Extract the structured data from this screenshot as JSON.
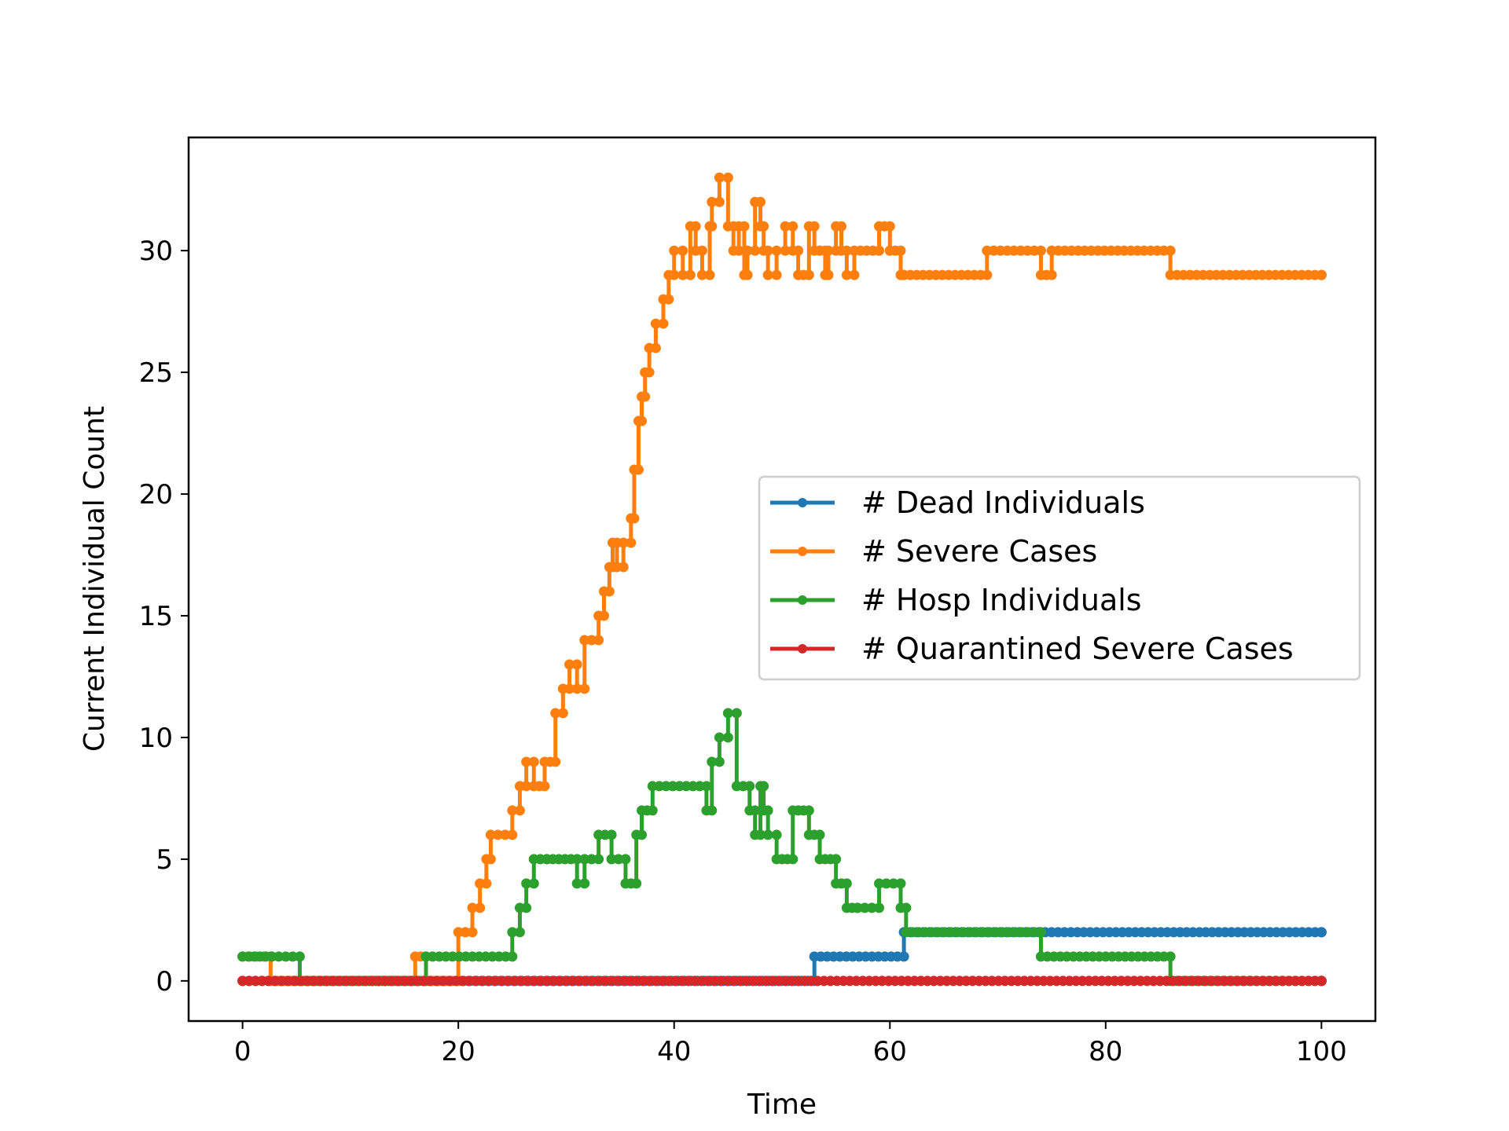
{
  "chart_data": {
    "type": "line",
    "title": "",
    "xlabel": "Time",
    "ylabel": "Current Individual Count",
    "xlim": [
      -5,
      105
    ],
    "ylim": [
      -1.65,
      34.65
    ],
    "xticks": [
      0,
      20,
      40,
      60,
      80,
      100
    ],
    "yticks": [
      0,
      5,
      10,
      15,
      20,
      25,
      30
    ],
    "grid": false,
    "legend_position": "center-right",
    "step": "post",
    "marker": "circle",
    "series": [
      {
        "name": "# Dead Individuals",
        "color": "#1f77b4",
        "x": [
          0,
          53,
          61.3,
          100
        ],
        "y": [
          0,
          1,
          2,
          2
        ]
      },
      {
        "name": "# Severe Cases",
        "color": "#ff7f0e",
        "x": [
          0,
          2.6,
          16,
          17,
          20,
          21.3,
          22,
          22.6,
          23,
          25,
          25.7,
          26.3,
          27,
          28,
          29,
          29.7,
          30.3,
          31,
          31.7,
          33,
          33.5,
          34,
          34.3,
          34.7,
          35.3,
          36,
          36.3,
          36.7,
          37,
          37.3,
          37.7,
          38.3,
          39,
          39.5,
          40,
          40.8,
          41.5,
          42,
          42.6,
          43.3,
          43.5,
          44.2,
          45,
          45.5,
          46,
          46.5,
          46.8,
          47.5,
          48,
          48.3,
          48.7,
          49.5,
          50.3,
          51,
          51.5,
          52.5,
          53,
          53.5,
          54,
          54.3,
          55,
          55.5,
          56,
          56.7,
          59,
          60,
          61,
          61.3,
          69,
          74,
          75,
          86,
          100
        ],
        "y": [
          1,
          0,
          1,
          0,
          2,
          3,
          4,
          5,
          6,
          7,
          8,
          9,
          8,
          9,
          11,
          12,
          13,
          12,
          14,
          15,
          16,
          17,
          18,
          17,
          18,
          19,
          21,
          23,
          24,
          25,
          26,
          27,
          28,
          29,
          30,
          29,
          31,
          30,
          29,
          31,
          32,
          33,
          31,
          30,
          31,
          29,
          30,
          32,
          31,
          30,
          29,
          30,
          31,
          30,
          29,
          31,
          30,
          30,
          29,
          30,
          31,
          30,
          29,
          30,
          31,
          30,
          29,
          29,
          30,
          29,
          30,
          29,
          29
        ]
      },
      {
        "name": "# Hosp Individuals",
        "color": "#2ca02c",
        "x": [
          0,
          2.7,
          5.3,
          17,
          25,
          25.7,
          26.3,
          27,
          28.2,
          31,
          31.7,
          33,
          34.2,
          35.5,
          36.5,
          37,
          38,
          43,
          43.5,
          44.2,
          45,
          45.8,
          47,
          47.5,
          48,
          48.3,
          48.7,
          49.5,
          51,
          52.5,
          53.5,
          55,
          56,
          57,
          59,
          61,
          61.5,
          74,
          86,
          100
        ],
        "y": [
          1,
          1,
          0,
          1,
          2,
          3,
          4,
          5,
          5,
          4,
          5,
          6,
          5,
          4,
          6,
          7,
          8,
          7,
          9,
          10,
          11,
          8,
          7,
          6,
          8,
          7,
          6,
          5,
          7,
          6,
          5,
          4,
          3,
          3,
          4,
          3,
          2,
          1,
          0,
          0
        ]
      },
      {
        "name": "# Quarantined Severe Cases",
        "color": "#d62728",
        "x": [
          0,
          100
        ],
        "y": [
          0,
          0
        ]
      }
    ]
  }
}
